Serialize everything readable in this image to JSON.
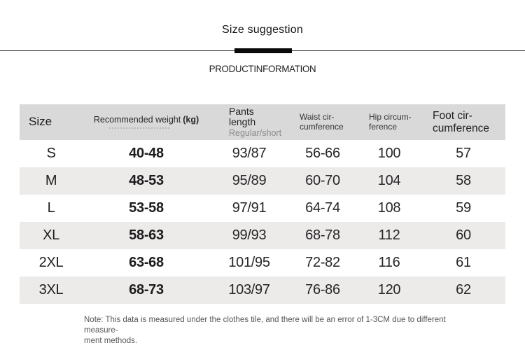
{
  "page": {
    "title": "Size suggestion",
    "section_title": "PRODUCTINFORMATION"
  },
  "table": {
    "header": {
      "size": "Size",
      "weight_label": "Recommended weight",
      "weight_unit": "(kg)",
      "pants_line1": "Pants",
      "pants_line2": "length",
      "pants_sub": "Regular/short",
      "waist_line1": "Waist cir-",
      "waist_line2": "cumference",
      "hip_line1": "Hip circum-",
      "hip_line2": "ference",
      "foot_line1": "Foot cir-",
      "foot_line2": "cumference"
    },
    "rows": [
      {
        "size": "S",
        "weight": "40-48",
        "pants": "93/87",
        "waist": "56-66",
        "hip": "100",
        "foot": "57"
      },
      {
        "size": "M",
        "weight": "48-53",
        "pants": "95/89",
        "waist": "60-70",
        "hip": "104",
        "foot": "58"
      },
      {
        "size": "L",
        "weight": "53-58",
        "pants": "97/91",
        "waist": "64-74",
        "hip": "108",
        "foot": "59"
      },
      {
        "size": "XL",
        "weight": "58-63",
        "pants": "99/93",
        "waist": "68-78",
        "hip": "112",
        "foot": "60"
      },
      {
        "size": "2XL",
        "weight": "63-68",
        "pants": "101/95",
        "waist": "72-82",
        "hip": "116",
        "foot": "61"
      },
      {
        "size": "3XL",
        "weight": "68-73",
        "pants": "103/97",
        "waist": "76-86",
        "hip": "120",
        "foot": "62"
      }
    ]
  },
  "note": {
    "line1": "Note: This data is measured under the clothes tile, and there will be an error of 1-3CM due to different measure-",
    "line2": "ment methods."
  },
  "colors": {
    "header_bg": "#d9d9d9",
    "alt_row_bg": "#edeaea",
    "text": "#222222",
    "muted_text": "#8a8a8a",
    "note_text": "#565656",
    "divider": "#2b2b2b",
    "accent_bar": "#0a0a0a"
  }
}
